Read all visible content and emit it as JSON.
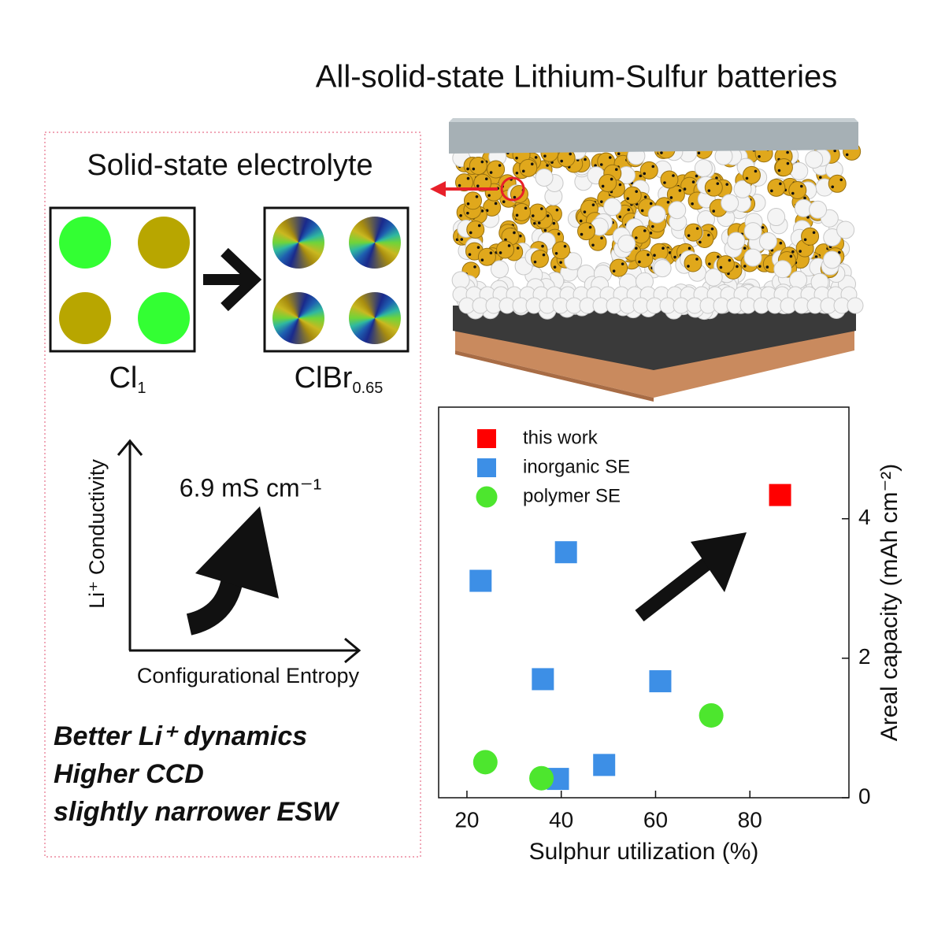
{
  "header": {
    "title": "All-solid-state Lithium-Sulfur batteries"
  },
  "electrolyte_panel": {
    "title": "Solid-state electrolyte",
    "left_label": {
      "text": "Cl",
      "subscript": "1"
    },
    "right_label": {
      "text": "ClBr",
      "subscript": "0.65"
    },
    "y_axis_label": "Li⁺ Conductivity",
    "x_axis_label": "Configurational Entropy",
    "annotation": "6.9 mS cm⁻¹",
    "highlights": [
      "Better Li⁺ dynamics",
      "Higher CCD",
      "slightly narrower ESW"
    ]
  },
  "chart_data": {
    "type": "scatter",
    "x_label": "Sulphur utilization (%)",
    "y_label": "Areal capacity (mAh cm⁻²)",
    "xlim": [
      14,
      101
    ],
    "ylim": [
      0,
      5.6
    ],
    "xticks": [
      20,
      40,
      60,
      80
    ],
    "yticks": [
      0,
      2,
      4
    ],
    "y_axis_side": "right",
    "series": [
      {
        "name": "this work",
        "color": "#ff0000",
        "marker": "square",
        "x": [
          86.4
        ],
        "values": [
          4.34
        ]
      },
      {
        "name": "inorganic SE",
        "color": "#3d8fe6",
        "marker": "square",
        "x": [
          22.9,
          41.0,
          36.1,
          61.0,
          49.1,
          39.3
        ],
        "values": [
          3.11,
          3.52,
          1.7,
          1.67,
          0.47,
          0.27
        ]
      },
      {
        "name": "polymer SE",
        "color": "#4de62e",
        "marker": "circle",
        "x": [
          71.8,
          23.9,
          35.8
        ],
        "values": [
          1.18,
          0.51,
          0.28
        ]
      }
    ]
  }
}
